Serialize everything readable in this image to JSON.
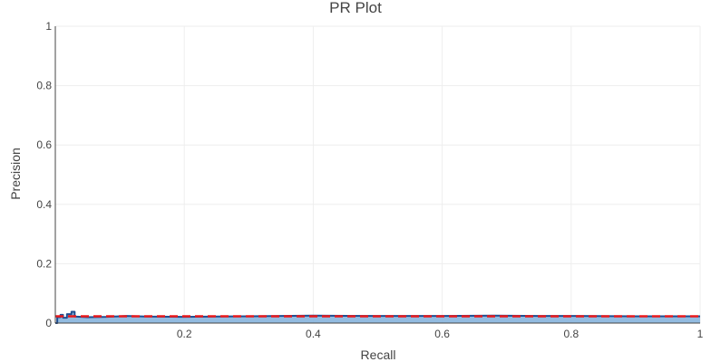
{
  "chart_data": {
    "type": "area",
    "title": "PR Plot",
    "xlabel": "Recall",
    "ylabel": "Precision",
    "xlim": [
      0,
      1
    ],
    "ylim": [
      0,
      1
    ],
    "grid": true,
    "x_ticks": [
      0.2,
      0.4,
      0.6,
      0.8,
      1
    ],
    "x_tick_labels": [
      "0.2",
      "0.4",
      "0.6",
      "0.8",
      "1"
    ],
    "y_ticks": [
      0,
      0.2,
      0.4,
      0.6,
      0.8,
      1
    ],
    "y_tick_labels": [
      "0",
      "0.2",
      "0.4",
      "0.6",
      "0.8",
      "1"
    ],
    "series": [
      {
        "kind": "pr-curve",
        "color": "#1f4e91",
        "fill": "#86b4dd",
        "x": [
          0,
          0.003,
          0.003,
          0.008,
          0.008,
          0.012,
          0.012,
          0.018,
          0.018,
          0.025,
          0.025,
          0.03,
          0.03,
          0.05,
          0.08,
          0.11,
          0.14,
          0.2,
          0.25,
          0.3,
          0.4,
          0.5,
          0.6,
          0.68,
          0.75,
          0.8,
          0.9,
          1
        ],
        "y": [
          0,
          0,
          0.02,
          0.02,
          0.028,
          0.028,
          0.018,
          0.018,
          0.03,
          0.03,
          0.038,
          0.038,
          0.022,
          0.02,
          0.021,
          0.024,
          0.022,
          0.021,
          0.022,
          0.023,
          0.025,
          0.024,
          0.024,
          0.025,
          0.024,
          0.024,
          0.023,
          0.023
        ]
      },
      {
        "kind": "baseline",
        "color": "#e8191c",
        "dash": true,
        "x": [
          0,
          1
        ],
        "y": [
          0.023,
          0.023
        ]
      }
    ]
  }
}
